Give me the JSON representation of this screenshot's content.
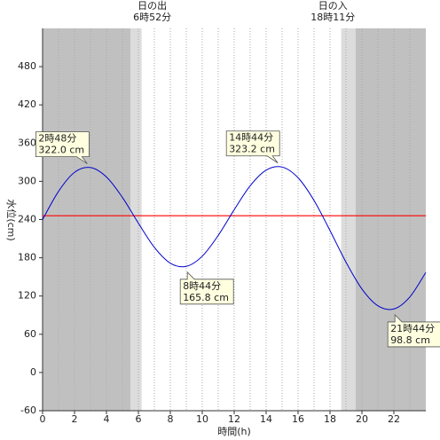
{
  "chart_data": {
    "type": "line",
    "xlabel": "時間(h)",
    "ylabel": "水位(cm)",
    "xlim": [
      0,
      24
    ],
    "xticks": [
      0,
      2,
      4,
      6,
      8,
      10,
      12,
      14,
      16,
      18,
      20,
      22
    ],
    "minor_xticks": [
      1,
      3,
      5,
      7,
      9,
      11,
      13,
      15,
      17,
      19,
      21,
      23
    ],
    "ylim": [
      -60,
      540
    ],
    "yticks": [
      -60,
      0,
      60,
      120,
      180,
      240,
      300,
      360,
      420,
      480
    ],
    "shading": [
      [
        0,
        5.5,
        "#c0c0c0"
      ],
      [
        5.5,
        6.2,
        "#dcdcdc"
      ],
      [
        18.7,
        19.6,
        "#dcdcdc"
      ],
      [
        19.6,
        24,
        "#c0c0c0"
      ]
    ],
    "sun": [
      {
        "name": "日の出",
        "time": "6時52分",
        "x": 6.87
      },
      {
        "name": "日の入",
        "time": "18時11分",
        "x": 18.18
      }
    ],
    "mean_level": 246,
    "mean_color": "#ff0000",
    "series": [
      {
        "color": "#0000cc",
        "x": [
          0,
          1,
          2,
          3,
          4,
          5,
          6,
          7,
          8,
          9,
          10,
          11,
          12,
          13,
          14,
          15,
          16,
          17,
          18,
          19,
          20,
          21,
          22,
          23,
          24
        ],
        "values": [
          240,
          284.3,
          314.1,
          321.6,
          306.8,
          274.7,
          234.3,
          196.4,
          171.6,
          166.6,
          182.5,
          215.1,
          255.4,
          293.0,
          317.5,
          322.4,
          305.6,
          270.0,
          222.8,
          173.2,
          131.0,
          104.7,
          99.7,
          118.5,
          157.0
        ]
      }
    ],
    "annotations": [
      {
        "x": 2.8,
        "value": 322.0,
        "time": "2時48分",
        "label": "322.0 cm",
        "side": "above"
      },
      {
        "x": 8.733,
        "value": 165.8,
        "time": "8時44分",
        "label": "165.8 cm",
        "side": "below"
      },
      {
        "x": 14.733,
        "value": 323.2,
        "time": "14時44分",
        "label": "323.2 cm",
        "side": "above"
      },
      {
        "x": 21.733,
        "value": 98.8,
        "time": "21時44分",
        "label": "98.8 cm",
        "side": "below"
      }
    ]
  }
}
